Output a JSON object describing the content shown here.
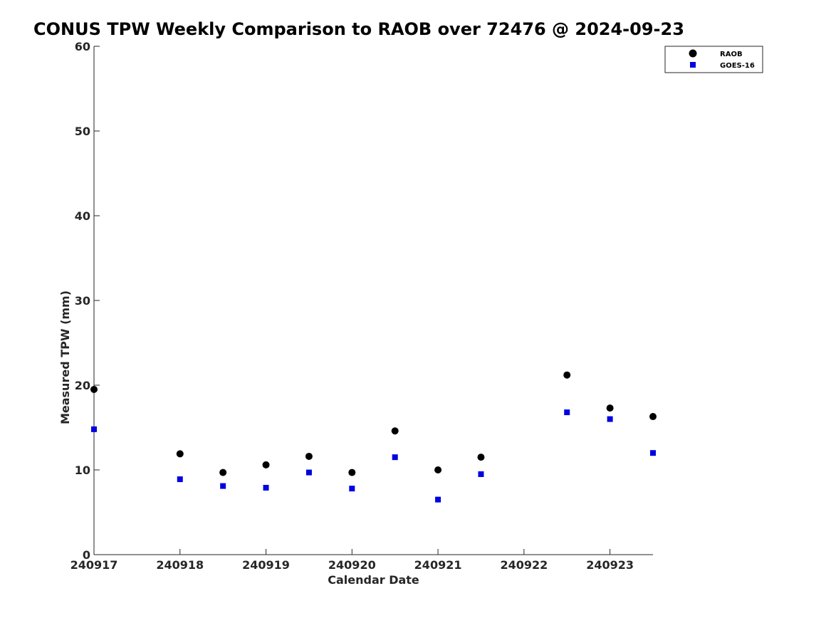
{
  "chart_data": {
    "type": "scatter",
    "title": "CONUS TPW Weekly Comparison to RAOB over 72476 @ 2024-09-23",
    "xlabel": "Calendar Date",
    "ylabel": "Measured TPW (mm)",
    "xlim": [
      240917,
      240923.5
    ],
    "ylim": [
      0,
      60
    ],
    "xticks": [
      240917,
      240918,
      240919,
      240920,
      240921,
      240922,
      240923
    ],
    "xtick_labels": [
      "240917",
      "240918",
      "240919",
      "240920",
      "240921",
      "240922",
      "240923"
    ],
    "yticks": [
      0,
      10,
      20,
      30,
      40,
      50,
      60
    ],
    "ytick_labels": [
      "0",
      "10",
      "20",
      "30",
      "40",
      "50",
      "60"
    ],
    "grid": false,
    "legend": {
      "placement": "top-right"
    },
    "series": [
      {
        "name": "RAOB",
        "marker": "circle",
        "color": "#000000",
        "points": [
          {
            "x": 240917.0,
            "y": 19.5
          },
          {
            "x": 240918.0,
            "y": 11.9
          },
          {
            "x": 240918.5,
            "y": 9.7
          },
          {
            "x": 240919.0,
            "y": 10.6
          },
          {
            "x": 240919.5,
            "y": 11.6
          },
          {
            "x": 240920.0,
            "y": 9.7
          },
          {
            "x": 240920.5,
            "y": 14.6
          },
          {
            "x": 240921.0,
            "y": 10.0
          },
          {
            "x": 240921.5,
            "y": 11.5
          },
          {
            "x": 240922.5,
            "y": 21.2
          },
          {
            "x": 240923.0,
            "y": 17.3
          },
          {
            "x": 240923.5,
            "y": 16.3
          }
        ]
      },
      {
        "name": "GOES-16",
        "marker": "square",
        "color": "#0000e0",
        "points": [
          {
            "x": 240917.0,
            "y": 14.8
          },
          {
            "x": 240918.0,
            "y": 8.9
          },
          {
            "x": 240918.5,
            "y": 8.1
          },
          {
            "x": 240919.0,
            "y": 7.9
          },
          {
            "x": 240919.5,
            "y": 9.7
          },
          {
            "x": 240920.0,
            "y": 7.8
          },
          {
            "x": 240920.5,
            "y": 11.5
          },
          {
            "x": 240921.0,
            "y": 6.5
          },
          {
            "x": 240921.5,
            "y": 9.5
          },
          {
            "x": 240922.5,
            "y": 16.8
          },
          {
            "x": 240923.0,
            "y": 16.0
          },
          {
            "x": 240923.5,
            "y": 12.0
          }
        ]
      }
    ]
  }
}
